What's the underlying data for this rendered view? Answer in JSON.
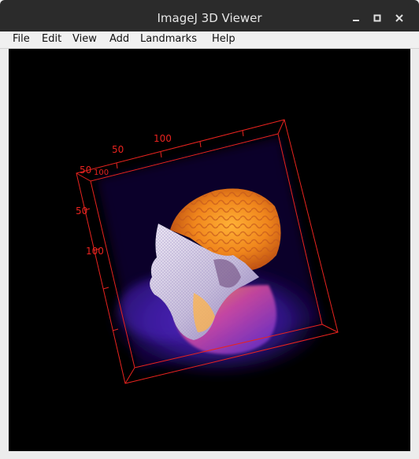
{
  "window": {
    "title": "ImageJ 3D Viewer"
  },
  "menu": {
    "items": [
      "File",
      "Edit",
      "View",
      "Add",
      "Landmarks",
      "Help"
    ]
  },
  "viewer": {
    "background_color": "#000000",
    "bounding_box_color": "#e8231f",
    "axis_labels": {
      "top_50": "50",
      "top_100": "100",
      "left_50a": "50",
      "left_50b": "50",
      "left_100": "100",
      "corner_100": "100"
    },
    "volume_description_colors": {
      "brain": "#f08a1c",
      "face": "#d8d2e6",
      "glow": "#5a2cc8"
    }
  },
  "icons": {
    "minimize": "minimize-icon",
    "maximize": "maximize-icon",
    "close": "close-icon"
  }
}
